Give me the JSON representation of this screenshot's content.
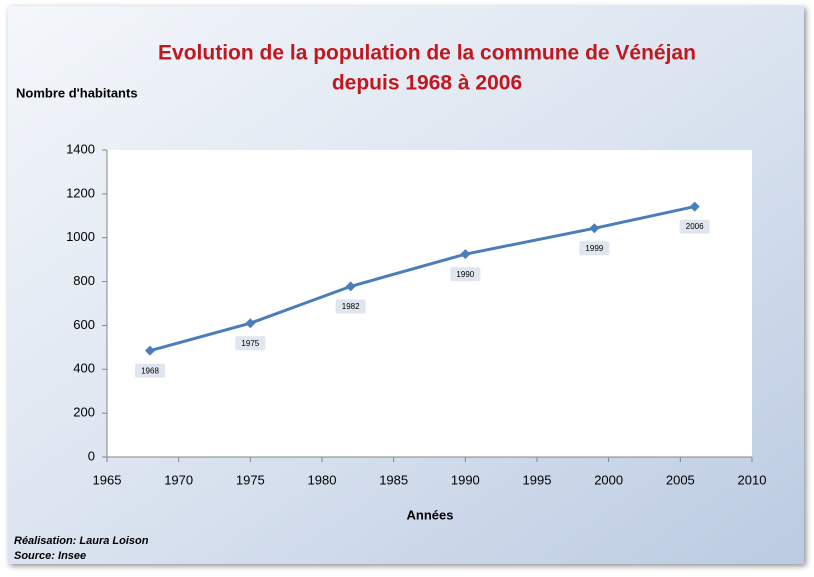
{
  "chart_data": {
    "type": "line",
    "title": [
      "Evolution de la population de la commune de Vénéjan",
      "depuis 1968 à 2006"
    ],
    "y_label": "Nombre d'habitants",
    "x_label": "Années",
    "credits": [
      "Réalisation: Laura Loison",
      "Source: Insee"
    ],
    "x": [
      1968,
      1975,
      1982,
      1990,
      1999,
      2006
    ],
    "series": [
      {
        "name": "Population",
        "color": "#4a7ebb",
        "values": [
          485,
          610,
          778,
          925,
          1043,
          1142
        ]
      }
    ],
    "xlim": [
      1965,
      2010
    ],
    "xticks": [
      1965,
      1970,
      1975,
      1980,
      1985,
      1990,
      1995,
      2000,
      2005,
      2010
    ],
    "ylim": [
      0,
      1400
    ],
    "yticks": [
      0,
      200,
      400,
      600,
      800,
      1000,
      1200,
      1400
    ],
    "data_labels": "x"
  }
}
